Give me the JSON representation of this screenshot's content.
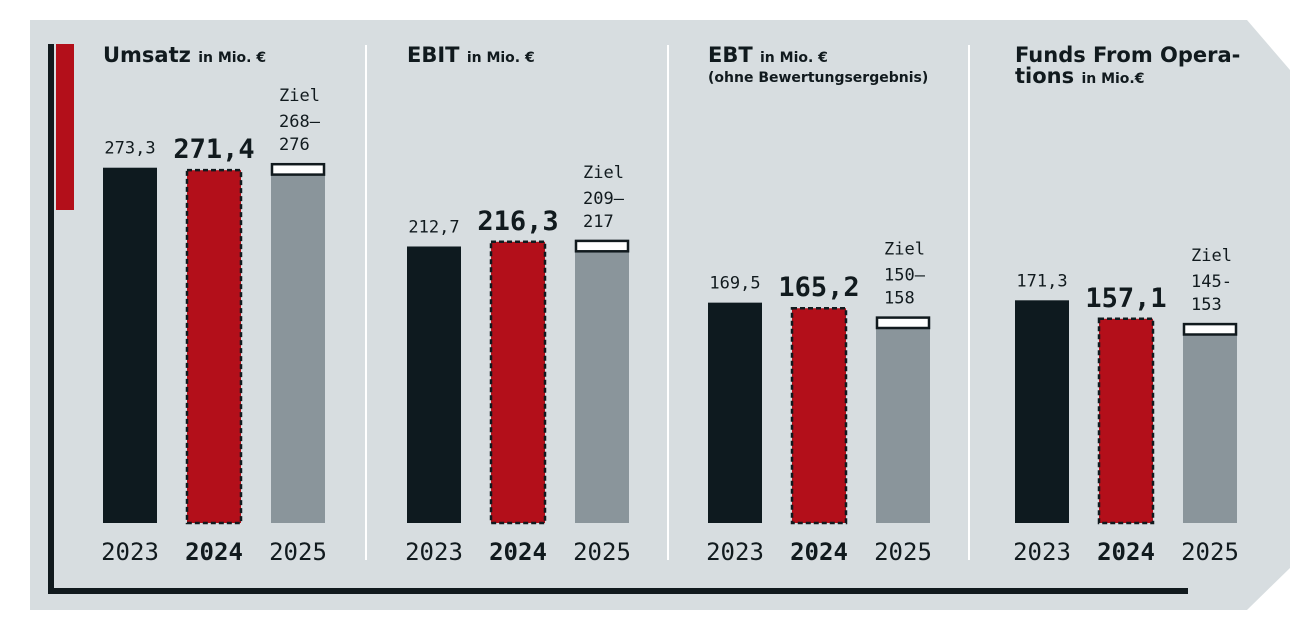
{
  "colors": {
    "background": "#d7dde0",
    "bar_2023": "#0e1a1f",
    "bar_2024": "#b30f1a",
    "bar_2025": "#8a959b",
    "target_box": "#ffffff",
    "accent_stripe": "#b30f1a",
    "frame": "#111a1e",
    "divider": "#ffffff"
  },
  "chart_data": [
    {
      "type": "bar",
      "title": "Umsatz",
      "unit": "in Mio. €",
      "categories": [
        "2023",
        "2024",
        "2025"
      ],
      "values": [
        273.3,
        271.4,
        268
      ],
      "value_labels": [
        "273,3",
        "271,4",
        "268–\n276"
      ],
      "target": {
        "label": "Ziel",
        "low": 268,
        "high": 276
      }
    },
    {
      "type": "bar",
      "title": "EBIT",
      "unit": "in Mio. €",
      "categories": [
        "2023",
        "2024",
        "2025"
      ],
      "values": [
        212.7,
        216.3,
        209
      ],
      "value_labels": [
        "212,7",
        "216,3",
        "209–\n217"
      ],
      "target": {
        "label": "Ziel",
        "low": 209,
        "high": 217
      }
    },
    {
      "type": "bar",
      "title": "EBT",
      "unit": "in Mio. €",
      "subtitle": "(ohne Bewertungsergebnis)",
      "categories": [
        "2023",
        "2024",
        "2025"
      ],
      "values": [
        169.5,
        165.2,
        150
      ],
      "value_labels": [
        "169,5",
        "165,2",
        "150–\n158"
      ],
      "target": {
        "label": "Ziel",
        "low": 150,
        "high": 158
      }
    },
    {
      "type": "bar",
      "title": "Funds From Opera-\ntions",
      "unit": "in Mio.€",
      "categories": [
        "2023",
        "2024",
        "2025"
      ],
      "values": [
        171.3,
        157.1,
        145
      ],
      "value_labels": [
        "171,3",
        "157,1",
        "145-\n153"
      ],
      "target": {
        "label": "Ziel",
        "low": 145,
        "high": 153
      }
    }
  ]
}
